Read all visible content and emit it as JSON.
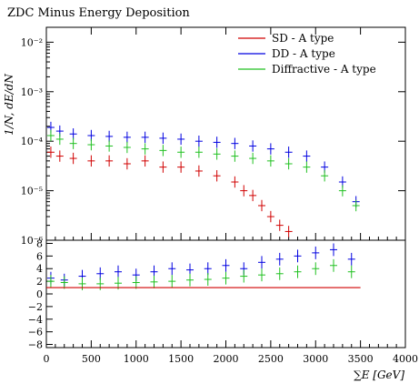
{
  "chart_data": [
    {
      "type": "scatter",
      "title": "ZDC Minus Energy Deposition",
      "ylabel": "1/N, dE/dN",
      "yscale": "log",
      "xlim": [
        0,
        4000
      ],
      "ylim": [
        1e-06,
        0.02
      ],
      "y_tick_labels": [
        "10⁻⁶",
        "10⁻⁵",
        "10⁻⁴",
        "10⁻³",
        "10⁻²"
      ],
      "legend_position": "top-right",
      "series": [
        {
          "name": "SD - A type",
          "color": "#d00000",
          "x": [
            50,
            150,
            300,
            500,
            700,
            900,
            1100,
            1300,
            1500,
            1700,
            1900,
            2100,
            2200,
            2300,
            2400,
            2500,
            2600,
            2700
          ],
          "values": [
            6e-05,
            5e-05,
            4.5e-05,
            4e-05,
            4e-05,
            3.5e-05,
            4e-05,
            3e-05,
            3e-05,
            2.5e-05,
            2e-05,
            1.5e-05,
            1e-05,
            8e-06,
            5e-06,
            3e-06,
            2e-06,
            1.5e-06
          ]
        },
        {
          "name": "DD - A type",
          "color": "#0000e0",
          "x": [
            50,
            150,
            300,
            500,
            700,
            900,
            1100,
            1300,
            1500,
            1700,
            1900,
            2100,
            2300,
            2500,
            2700,
            2900,
            3100,
            3300,
            3450
          ],
          "values": [
            0.00019,
            0.00016,
            0.00014,
            0.00013,
            0.000125,
            0.00012,
            0.00012,
            0.000115,
            0.00011,
            0.0001,
            9.5e-05,
            9e-05,
            8e-05,
            7e-05,
            6e-05,
            5e-05,
            3e-05,
            1.5e-05,
            6e-06
          ]
        },
        {
          "name": "Diffractive - A type",
          "color": "#20c020",
          "x": [
            50,
            150,
            300,
            500,
            700,
            900,
            1100,
            1300,
            1500,
            1700,
            1900,
            2100,
            2300,
            2500,
            2700,
            2900,
            3100,
            3300,
            3450
          ],
          "values": [
            0.00013,
            0.00011,
            9e-05,
            8.5e-05,
            8e-05,
            7.5e-05,
            7e-05,
            6.5e-05,
            6e-05,
            6e-05,
            5.5e-05,
            5e-05,
            4.5e-05,
            4e-05,
            3.5e-05,
            3e-05,
            2e-05,
            1e-05,
            5e-06
          ]
        }
      ]
    },
    {
      "type": "scatter",
      "xlabel": "∑E [GeV]",
      "xlim": [
        0,
        4000
      ],
      "ylim": [
        -8.5,
        8.5
      ],
      "x_tick_labels": [
        "0",
        "500",
        "1000",
        "1500",
        "2000",
        "2500",
        "3000",
        "3500",
        "4000"
      ],
      "y_tick_labels": [
        "8",
        "6",
        "4",
        "2",
        "0",
        "−2",
        "−4",
        "−6",
        "−8"
      ],
      "series": [
        {
          "color": "#0000e0",
          "x": [
            50,
            200,
            400,
            600,
            800,
            1000,
            1200,
            1400,
            1600,
            1800,
            2000,
            2200,
            2400,
            2600,
            2800,
            3000,
            3200,
            3400
          ],
          "values": [
            2.5,
            2.2,
            2.8,
            3.2,
            3.5,
            3.0,
            3.5,
            4.0,
            3.8,
            4.0,
            4.5,
            4.0,
            5.0,
            5.5,
            6.0,
            6.5,
            7.0,
            5.5
          ]
        },
        {
          "color": "#20c020",
          "x": [
            50,
            200,
            400,
            600,
            800,
            1000,
            1200,
            1400,
            1600,
            1800,
            2000,
            2200,
            2400,
            2600,
            2800,
            3000,
            3200,
            3400
          ],
          "values": [
            2.0,
            1.8,
            1.6,
            1.6,
            1.7,
            1.8,
            1.9,
            2.0,
            2.2,
            2.3,
            2.5,
            2.8,
            3.0,
            3.2,
            3.5,
            4.0,
            4.5,
            3.5
          ]
        },
        {
          "color": "#d00000",
          "x": [
            0,
            3500
          ],
          "values": [
            1,
            1
          ]
        }
      ]
    }
  ]
}
